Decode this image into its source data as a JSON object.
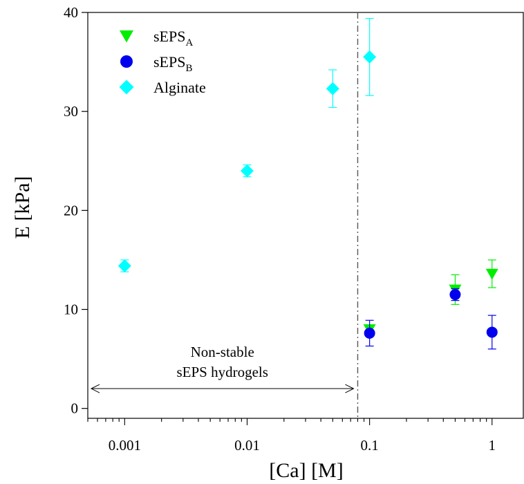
{
  "chart_data": {
    "type": "scatter",
    "xlabel": "[Ca] [M]",
    "ylabel": "E [kPa]",
    "x_scale": "log",
    "xlim": [
      0.0005,
      1.8
    ],
    "ylim": [
      -1,
      40
    ],
    "x_ticks": [
      0.001,
      0.01,
      0.1,
      1
    ],
    "x_tick_labels": [
      "0.001",
      "0.01",
      "0.1",
      "1"
    ],
    "y_ticks": [
      0,
      10,
      20,
      30,
      40
    ],
    "y_tick_labels": [
      "0",
      "10",
      "20",
      "30",
      "40"
    ],
    "grid": false,
    "legend_position": "top-left",
    "series": [
      {
        "name": "sEPS",
        "name_sub": "A",
        "marker": "triangle-down",
        "color": "#00ee00",
        "points": [
          {
            "x": 0.1,
            "y": 8.0,
            "err": 0.3
          },
          {
            "x": 0.5,
            "y": 12.0,
            "err": 1.5
          },
          {
            "x": 1,
            "y": 13.6,
            "err": 1.4
          }
        ]
      },
      {
        "name": "sEPS",
        "name_sub": "B",
        "marker": "circle",
        "color": "#0000ee",
        "points": [
          {
            "x": 0.1,
            "y": 7.6,
            "err": 1.3
          },
          {
            "x": 0.5,
            "y": 11.5,
            "err": 0.6
          },
          {
            "x": 1,
            "y": 7.7,
            "err": 1.7
          }
        ]
      },
      {
        "name": "Alginate",
        "name_sub": "",
        "marker": "diamond",
        "color": "#00ffff",
        "points": [
          {
            "x": 0.001,
            "y": 14.4,
            "err": 0.6
          },
          {
            "x": 0.01,
            "y": 24.0,
            "err": 0.6
          },
          {
            "x": 0.05,
            "y": 32.3,
            "err": 1.9
          },
          {
            "x": 0.1,
            "y": 35.5,
            "err": 3.9
          }
        ]
      }
    ],
    "vline": {
      "x": 0.08,
      "style": "dash-dot"
    },
    "annotation": {
      "lines": [
        "Non-stable",
        "sEPS hydrogels"
      ],
      "arrow_from_x": 0.0005,
      "arrow_to_x": 0.08,
      "arrow_y": 2.0
    }
  }
}
